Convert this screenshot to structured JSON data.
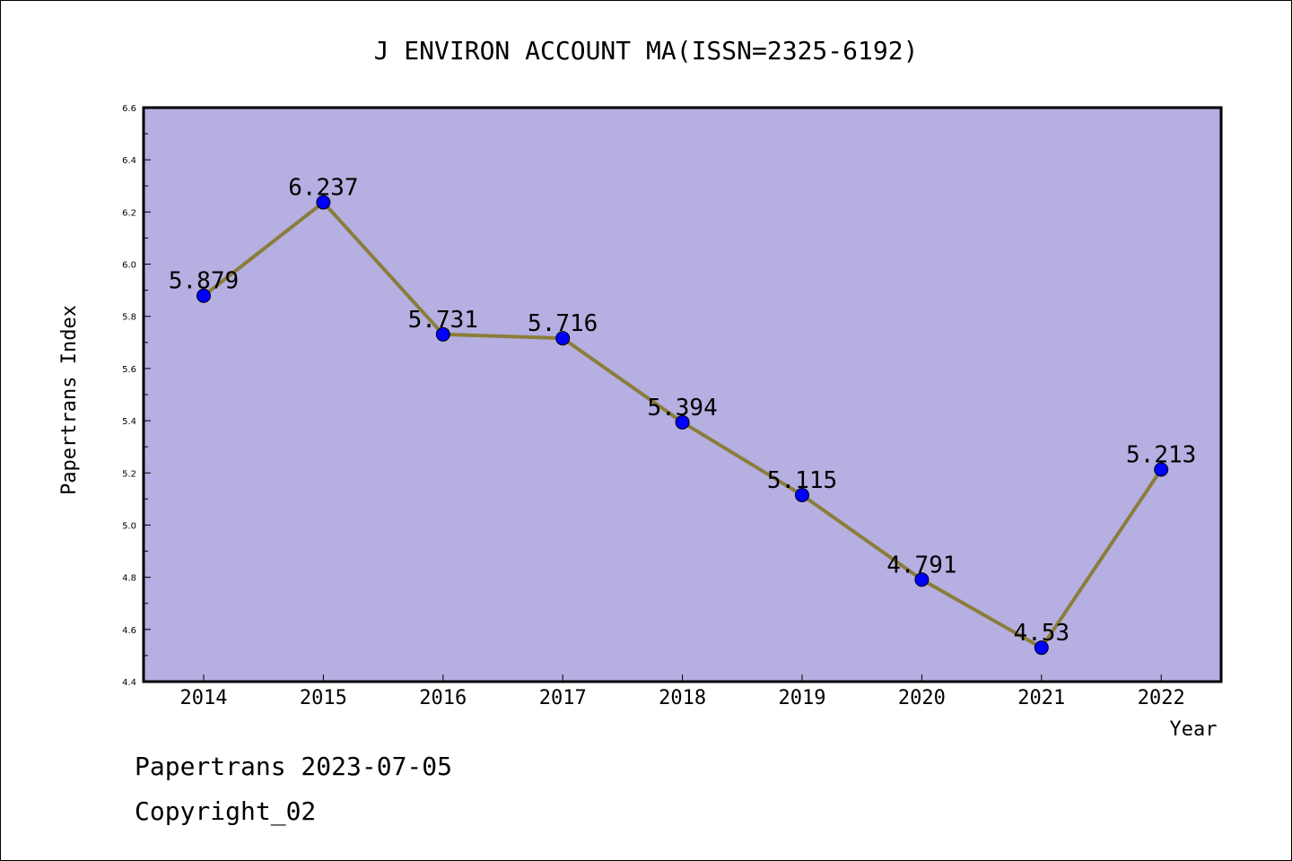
{
  "chart_data": {
    "type": "line",
    "title": "J ENVIRON ACCOUNT MA(ISSN=2325-6192)",
    "xlabel": "Year",
    "ylabel": "Papertrans Index",
    "categories": [
      "2014",
      "2015",
      "2016",
      "2017",
      "2018",
      "2019",
      "2020",
      "2021",
      "2022"
    ],
    "series": [
      {
        "values": [
          5.879,
          6.237,
          5.731,
          5.716,
          5.394,
          5.115,
          4.791,
          4.53,
          5.213
        ],
        "labels": [
          "5.879",
          "6.237",
          "5.731",
          "5.716",
          "5.394",
          "5.115",
          "4.791",
          "4.53",
          "5.213"
        ],
        "line_color": "#8b7d3a",
        "marker_color": "#0000ff"
      }
    ],
    "ylim": [
      4.4,
      6.6
    ],
    "yticks": [
      "4.4",
      "4.6",
      "4.8",
      "5.0",
      "5.2",
      "5.4",
      "5.6",
      "5.8",
      "6.0",
      "6.2",
      "6.4",
      "6.6"
    ],
    "plot_background": "#b5afe2",
    "grid": false,
    "legend": "none"
  },
  "footer": {
    "line1": "Papertrans 2023-07-05",
    "line2": "Copyright_02"
  }
}
